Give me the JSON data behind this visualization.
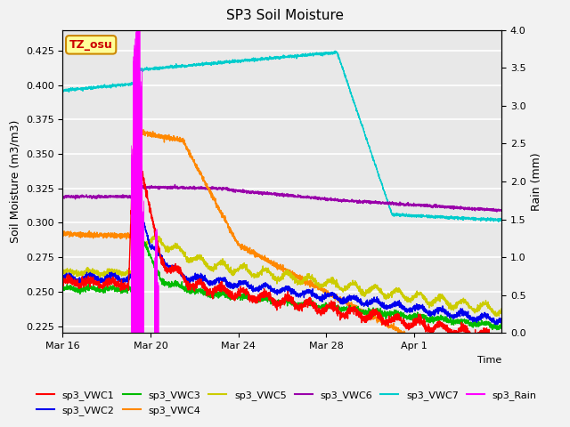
{
  "title": "SP3 Soil Moisture",
  "xlabel": "Time",
  "ylabel_left": "Soil Moisture (m3/m3)",
  "ylabel_right": "Rain (mm)",
  "ylim_left": [
    0.22,
    0.44
  ],
  "ylim_right": [
    0.0,
    4.0
  ],
  "x_ticks_labels": [
    "Mar 16",
    "Mar 20",
    "Mar 24",
    "Mar 28",
    "Apr 1"
  ],
  "x_ticks_pos": [
    0,
    4,
    8,
    12,
    16
  ],
  "bg_color": "#e8e8e8",
  "series_colors": {
    "sp3_VWC1": "#ff0000",
    "sp3_VWC2": "#0000ee",
    "sp3_VWC3": "#00bb00",
    "sp3_VWC4": "#ff8800",
    "sp3_VWC5": "#cccc00",
    "sp3_VWC6": "#9900aa",
    "sp3_VWC7": "#00cccc",
    "sp3_Rain": "#ff00ff"
  },
  "tz_label": "TZ_osu",
  "tz_box_color": "#ffff99",
  "tz_text_color": "#cc0000",
  "tz_border_color": "#cc8800"
}
